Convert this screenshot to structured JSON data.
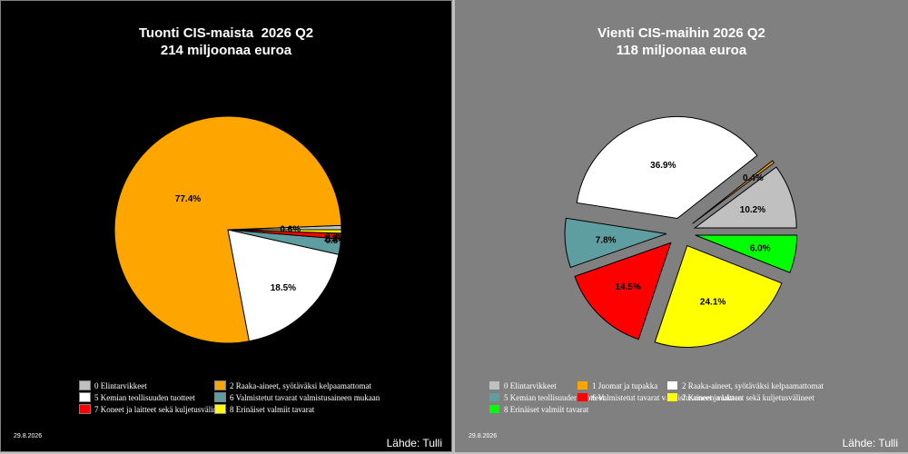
{
  "date": "29.8.2026",
  "source": "Lähde: Tulli",
  "chart_data": [
    {
      "type": "pie",
      "title": "Tuonti CIS-maista  2026 Q2",
      "subtitle": "214 miljoonaa euroa",
      "legend_placement": "bottom",
      "background": "#000000",
      "slices": [
        {
          "name": "0 Elintarvikkeet",
          "value": 0.6,
          "label": "0.6%",
          "color": "#c0c0c0"
        },
        {
          "name": "2 Raaka-aineet, syötäväksi kelpaamattomat",
          "value": 77.4,
          "label": "77.4%",
          "color": "#ffa500"
        },
        {
          "name": "5 Kemian teollisuuden tuotteet",
          "value": 18.5,
          "label": "18.5%",
          "color": "#ffffff"
        },
        {
          "name": "6 Valmistetut tavarat valmistusaineen mukaan",
          "value": 2.2,
          "label": "2.2%",
          "color": "#5f9ea0"
        },
        {
          "name": "7 Koneet ja laitteet sekä kuljetusvälineet",
          "value": 0.8,
          "label": "0.8%",
          "color": "#ff0000"
        },
        {
          "name": "8 Erinäiset valmiit tavarat",
          "value": 0.5,
          "label": "0.5%",
          "color": "#ffff00"
        }
      ]
    },
    {
      "type": "pie",
      "title": "Vienti CIS-maihin 2026 Q2",
      "subtitle": "118 miljoonaa euroa",
      "legend_placement": "bottom",
      "background": "#808080",
      "exploded": true,
      "slices": [
        {
          "name": "0 Elintarvikkeet",
          "value": 10.2,
          "label": "10.2%",
          "color": "#c0c0c0"
        },
        {
          "name": "1 Juomat ja tupakka",
          "value": 0.4,
          "label": "0.4%",
          "color": "#ffa500"
        },
        {
          "name": "2 Raaka-aineet, syötäväksi kelpaamattomat",
          "value": 36.9,
          "label": "36.9%",
          "color": "#ffffff"
        },
        {
          "name": "5 Kemian teollisuuden tuotteet",
          "value": 7.8,
          "label": "7.8%",
          "color": "#5f9ea0"
        },
        {
          "name": "6 Valmistetut tavarat valmistusaineen mukaan",
          "value": 14.5,
          "label": "14.5%",
          "color": "#ff0000"
        },
        {
          "name": "7 Koneet ja laitteet sekä kuljetusvälineet",
          "value": 24.1,
          "label": "24.1%",
          "color": "#ffff00"
        },
        {
          "name": "8 Erinäiset valmiit tavarat",
          "value": 6.0,
          "label": "6.0%",
          "color": "#00ff00"
        }
      ]
    }
  ]
}
